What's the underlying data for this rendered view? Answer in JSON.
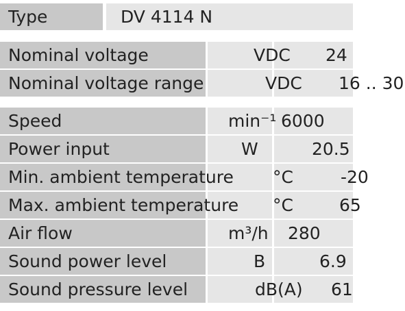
{
  "header": {
    "label": "Type",
    "value": "DV 4114 N"
  },
  "sections": [
    {
      "rows": [
        {
          "label": "Nominal voltage",
          "unit": "VDC",
          "value": "24"
        },
        {
          "label": "Nominal voltage range",
          "unit": "VDC",
          "value": "16 .. 30"
        }
      ]
    },
    {
      "rows": [
        {
          "label": "Speed",
          "unit": "min⁻¹",
          "value": "6000"
        },
        {
          "label": "Power input",
          "unit": "W",
          "value": "20.5"
        },
        {
          "label": "Min. ambient temperature",
          "unit": "°C",
          "value": "-20"
        },
        {
          "label": "Max. ambient temperature",
          "unit": "°C",
          "value": "65"
        },
        {
          "label": "Air flow",
          "unit": "m³/h",
          "value": "280"
        },
        {
          "label": "Sound power level",
          "unit": "B",
          "value": "6.9"
        },
        {
          "label": "Sound pressure level",
          "unit": "dB(A)",
          "value": "61"
        }
      ]
    }
  ]
}
